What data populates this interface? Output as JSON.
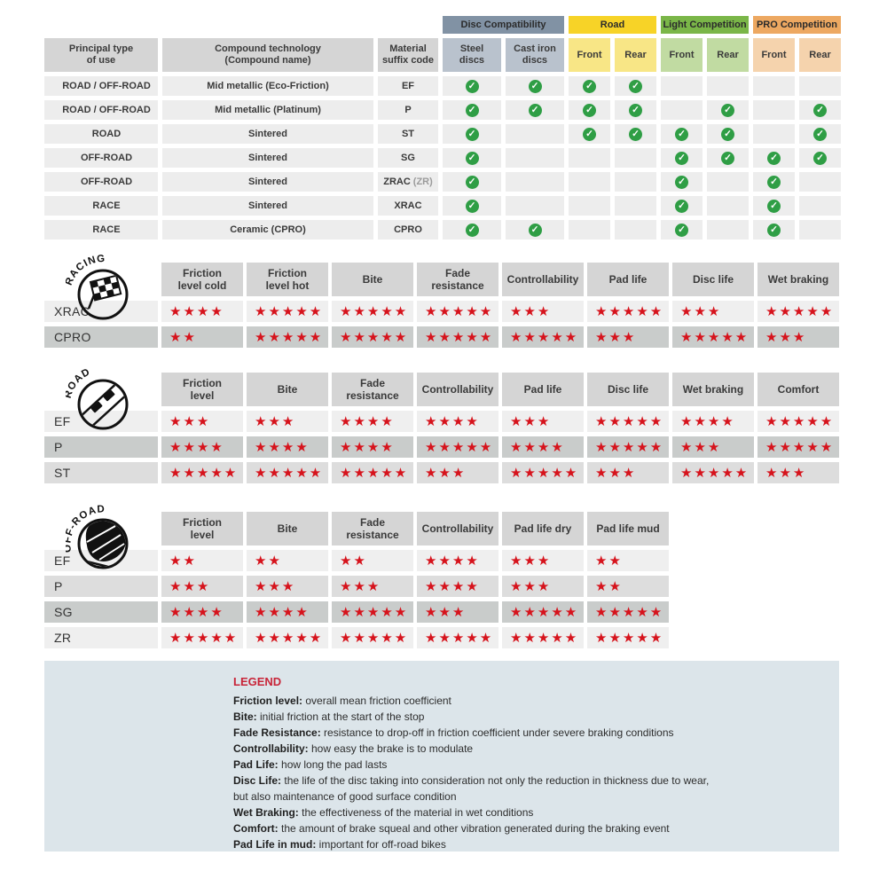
{
  "colors": {
    "check_green": "#2f9e45",
    "star_red": "#d6131c",
    "legend_bg": "#dce5ea",
    "legend_red": "#c82438",
    "header_gray": "#d5d5d5",
    "row_light": "#efefef",
    "row_dark": "#c9cccb"
  },
  "compat_table": {
    "corner_headers": [
      "Principal type\nof use",
      "Compound technology\n(Compound name)",
      "Material\nsuffix code"
    ],
    "bands": [
      {
        "label": "Disc Compatibility",
        "color": "#8192a4",
        "sub_color": "#b9c2cd",
        "span": 2
      },
      {
        "label": "Road",
        "color": "#f7d327",
        "sub_color": "#f8e686",
        "span": 2
      },
      {
        "label": "Light Competition",
        "color": "#7ab648",
        "sub_color": "#c1dba2",
        "span": 2
      },
      {
        "label": "PRO Competition",
        "color": "#eda861",
        "sub_color": "#f5d3ad",
        "span": 2
      }
    ],
    "sub_headers": [
      "Steel\ndiscs",
      "Cast iron\ndiscs",
      "Front",
      "Rear",
      "Front",
      "Rear",
      "Front",
      "Rear"
    ],
    "rows": [
      {
        "use": "ROAD / OFF-ROAD",
        "tech": "Mid metallic (Eco-Friction)",
        "code": "EF",
        "code_note": "",
        "checks": [
          1,
          1,
          1,
          1,
          0,
          0,
          0,
          0
        ]
      },
      {
        "use": "ROAD / OFF-ROAD",
        "tech": "Mid metallic (Platinum)",
        "code": "P",
        "code_note": "",
        "checks": [
          1,
          1,
          1,
          1,
          0,
          1,
          0,
          1
        ]
      },
      {
        "use": "ROAD",
        "tech": "Sintered",
        "code": "ST",
        "code_note": "",
        "checks": [
          1,
          0,
          1,
          1,
          1,
          1,
          0,
          1
        ]
      },
      {
        "use": "OFF-ROAD",
        "tech": "Sintered",
        "code": "SG",
        "code_note": "",
        "checks": [
          1,
          0,
          0,
          0,
          1,
          1,
          1,
          1
        ]
      },
      {
        "use": "OFF-ROAD",
        "tech": "Sintered",
        "code": "ZRAC",
        "code_note": "(ZR)",
        "checks": [
          1,
          0,
          0,
          0,
          1,
          0,
          1,
          0
        ]
      },
      {
        "use": "RACE",
        "tech": "Sintered",
        "code": "XRAC",
        "code_note": "",
        "checks": [
          1,
          0,
          0,
          0,
          1,
          0,
          1,
          0
        ]
      },
      {
        "use": "RACE",
        "tech": "Ceramic (CPRO)",
        "code": "CPRO",
        "code_note": "",
        "checks": [
          1,
          1,
          0,
          0,
          1,
          0,
          1,
          0
        ]
      }
    ]
  },
  "sections": {
    "racing": {
      "icon_label": "RACING",
      "columns": [
        "Friction\nlevel cold",
        "Friction\nlevel hot",
        "Bite",
        "Fade\nresistance",
        "Controllability",
        "Pad life",
        "Disc life",
        "Wet braking"
      ],
      "rows": [
        {
          "label": "XRAC",
          "shade": "light",
          "stars": [
            4,
            5,
            5,
            5,
            3,
            5,
            3,
            5
          ]
        },
        {
          "label": "CPRO",
          "shade": "dark",
          "stars": [
            2,
            5,
            5,
            5,
            5,
            3,
            5,
            3
          ]
        }
      ]
    },
    "road": {
      "icon_label": "ROAD",
      "columns": [
        "Friction\nlevel",
        "Bite",
        "Fade\nresistance",
        "Controllability",
        "Pad life",
        "Disc life",
        "Wet braking",
        "Comfort"
      ],
      "rows": [
        {
          "label": "EF",
          "shade": "light",
          "stars": [
            3,
            3,
            4,
            4,
            3,
            5,
            4,
            5
          ]
        },
        {
          "label": "P",
          "shade": "dark",
          "stars": [
            4,
            4,
            4,
            5,
            4,
            5,
            3,
            5
          ]
        },
        {
          "label": "ST",
          "shade": "medium",
          "stars": [
            5,
            5,
            5,
            3,
            5,
            3,
            5,
            3
          ]
        }
      ]
    },
    "offroad": {
      "icon_label": "OFF-ROAD",
      "columns": [
        "Friction\nlevel",
        "Bite",
        "Fade\nresistance",
        "Controllability",
        "Pad life dry",
        "Pad life mud"
      ],
      "rows": [
        {
          "label": "EF",
          "shade": "light",
          "stars": [
            2,
            2,
            2,
            4,
            3,
            2
          ]
        },
        {
          "label": "P",
          "shade": "medium",
          "stars": [
            3,
            3,
            3,
            4,
            3,
            2
          ]
        },
        {
          "label": "SG",
          "shade": "dark",
          "stars": [
            4,
            4,
            5,
            3,
            5,
            5
          ]
        },
        {
          "label": "ZR",
          "shade": "light",
          "stars": [
            5,
            5,
            5,
            5,
            5,
            5
          ]
        }
      ]
    }
  },
  "legend": {
    "title": "LEGEND",
    "lines": [
      {
        "term": "Friction level",
        "desc": "overall mean friction coefficient"
      },
      {
        "term": "Bite",
        "desc": "initial friction at the start of the stop"
      },
      {
        "term": "Fade Resistance",
        "desc": "resistance to drop-off in friction coefficient under severe braking conditions"
      },
      {
        "term": "Controllability",
        "desc": "how easy the brake is to modulate"
      },
      {
        "term": "Pad Life",
        "desc": "how long the pad lasts"
      },
      {
        "term": "Disc Life",
        "desc": "the life of the disc taking into consideration not only the reduction in thickness due to wear,"
      },
      {
        "term": "",
        "desc": "but also maintenance of good surface condition"
      },
      {
        "term": "Wet Braking",
        "desc": "the effectiveness of the material in wet conditions"
      },
      {
        "term": "Comfort",
        "desc": "the amount of brake squeal and other vibration generated during the braking event"
      },
      {
        "term": "Pad Life in mud",
        "desc": "important for off-road bikes"
      }
    ]
  }
}
